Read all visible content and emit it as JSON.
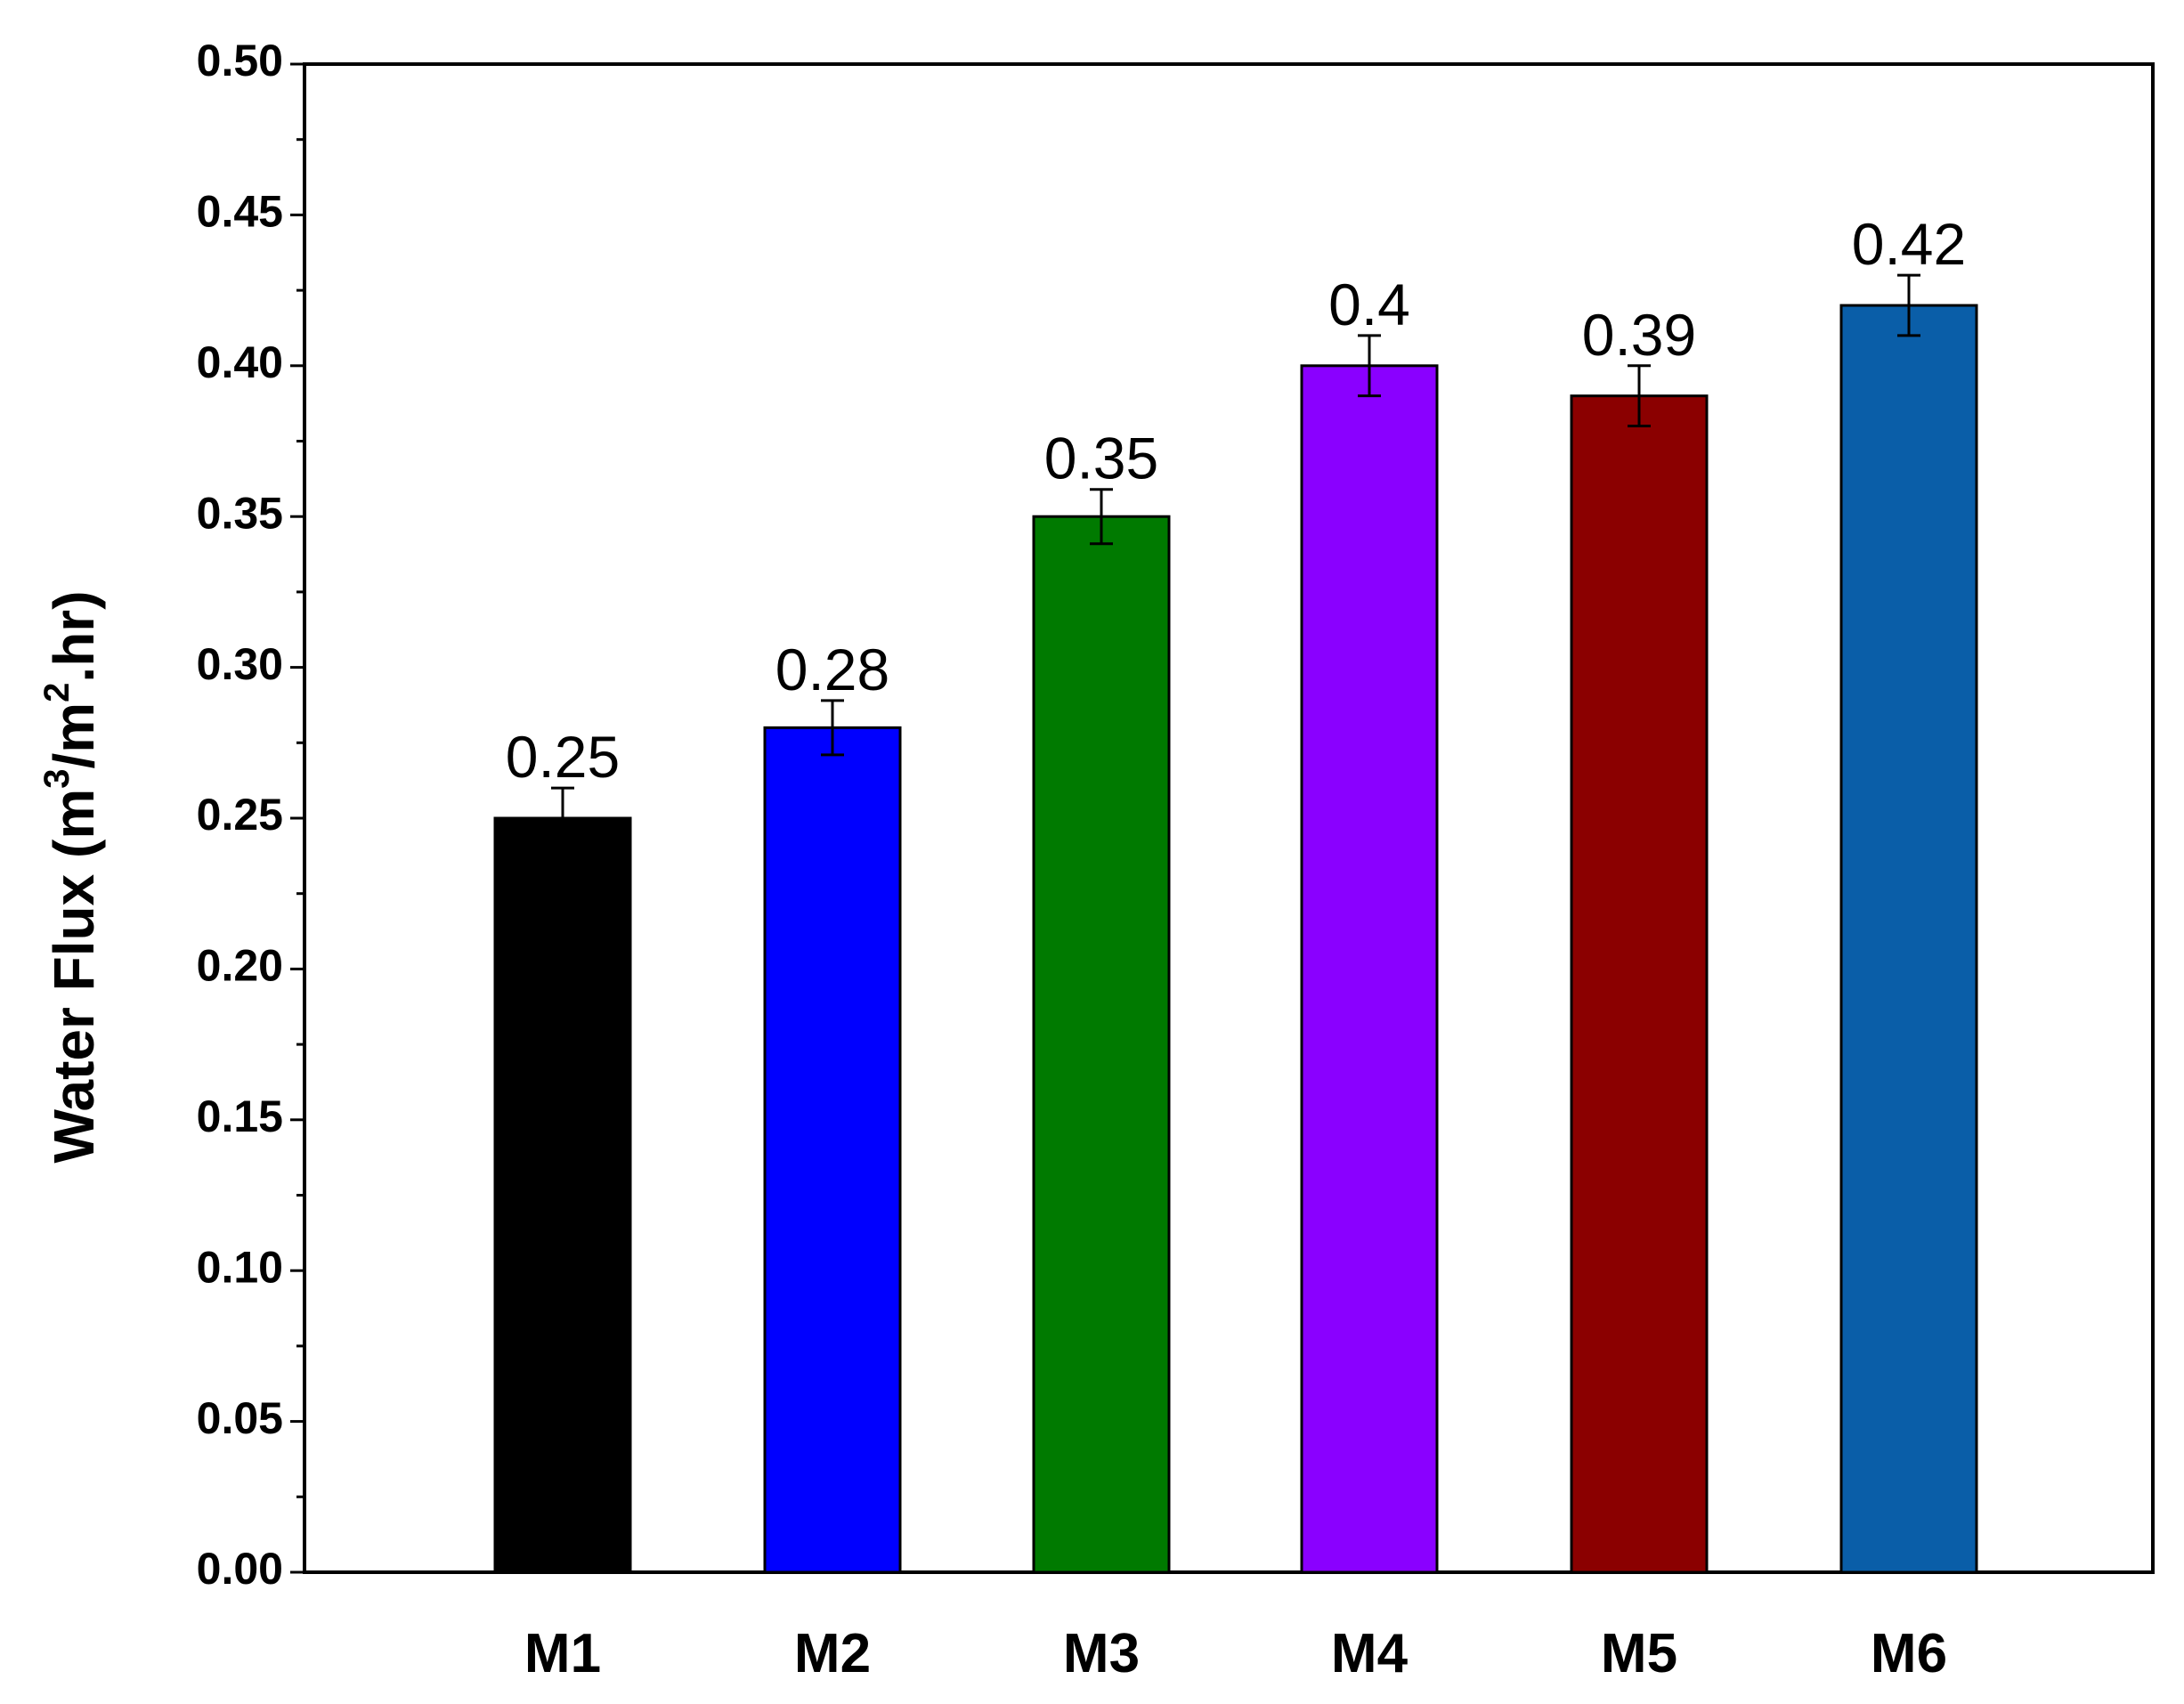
{
  "chart_data": {
    "type": "bar",
    "categories": [
      "M1",
      "M2",
      "M3",
      "M4",
      "M5",
      "M6"
    ],
    "values": [
      0.25,
      0.28,
      0.35,
      0.4,
      0.39,
      0.42
    ],
    "errors": [
      0.01,
      0.009,
      0.009,
      0.01,
      0.01,
      0.01
    ],
    "data_labels": [
      "0.25",
      "0.28",
      "0.35",
      "0.4",
      "0.39",
      "0.42"
    ],
    "colors": [
      "#000000",
      "#0000ff",
      "#007a00",
      "#8a00ff",
      "#8b0000",
      "#0a5ea8"
    ],
    "title": "",
    "xlabel": "",
    "ylabel": {
      "prefix": "Water Flux (m",
      "sup1": "3",
      "middle": "/m",
      "sup2": "2",
      "suffix": ".hr)"
    },
    "ylim": [
      0.0,
      0.5
    ],
    "yticks": [
      "0.00",
      "0.05",
      "0.10",
      "0.15",
      "0.20",
      "0.25",
      "0.30",
      "0.35",
      "0.40",
      "0.45",
      "0.50"
    ],
    "grid": false,
    "legend": "none"
  }
}
